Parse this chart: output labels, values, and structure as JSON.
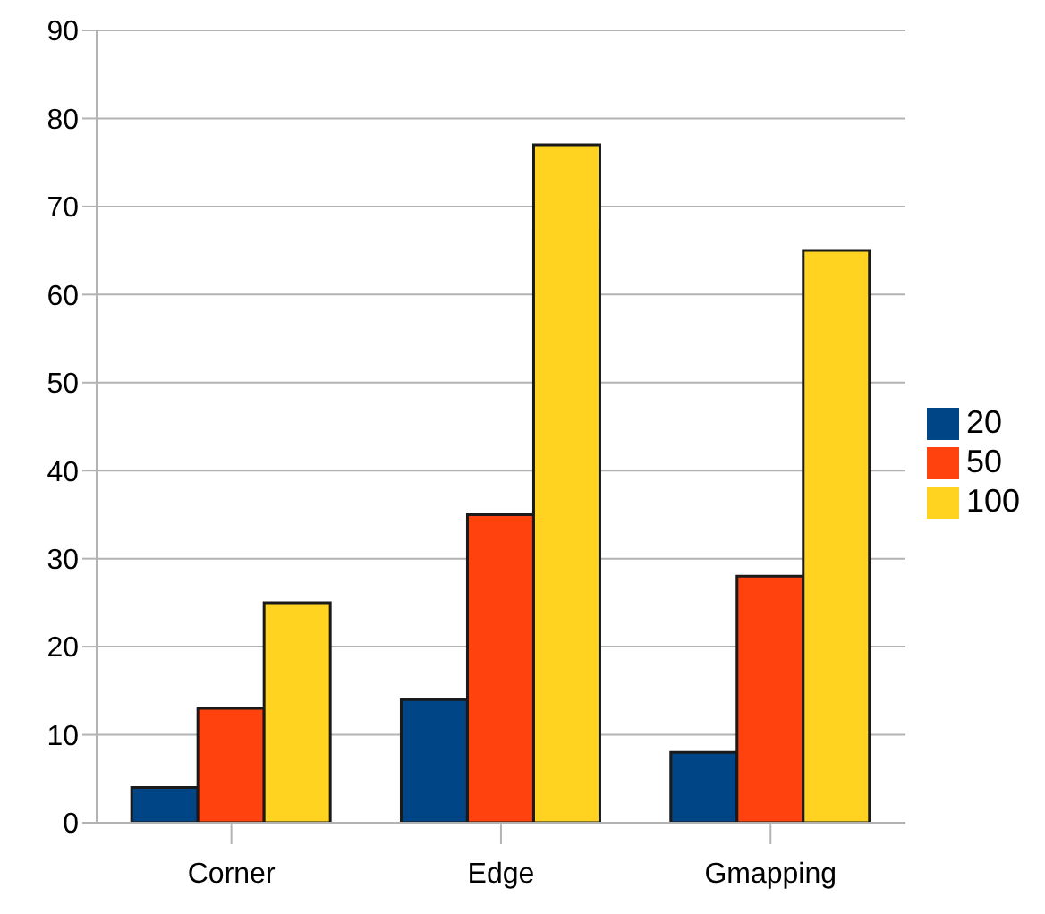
{
  "chart_data": {
    "type": "bar",
    "categories": [
      "Corner",
      "Edge",
      "Gmapping"
    ],
    "series": [
      {
        "name": "20",
        "color": "#004586",
        "values": [
          4,
          14,
          8
        ]
      },
      {
        "name": "50",
        "color": "#ff420e",
        "values": [
          13,
          35,
          28
        ]
      },
      {
        "name": "100",
        "color": "#ffd320",
        "values": [
          25,
          77,
          65
        ]
      }
    ],
    "ylim": [
      0,
      90
    ],
    "yticks": [
      0,
      10,
      20,
      30,
      40,
      50,
      60,
      70,
      80,
      90
    ],
    "grid": "y",
    "legend": "right"
  }
}
